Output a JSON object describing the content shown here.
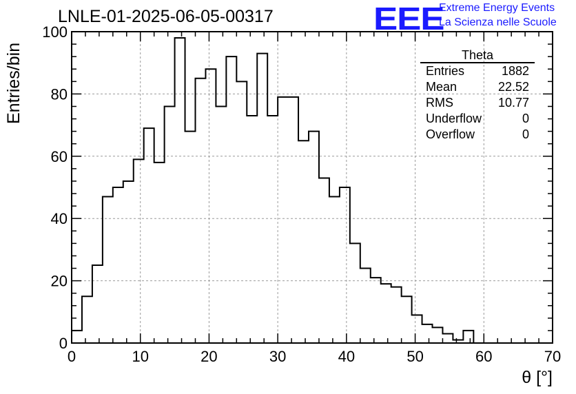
{
  "title": "LNLE-01-2025-06-05-00317",
  "logo": {
    "mark": "EEE",
    "line1": "Extreme Energy Events",
    "line2": "La Scienza nelle Scuole",
    "color": "#1a1aff"
  },
  "stats_box": {
    "title": "Theta",
    "rows": [
      {
        "label": "Entries",
        "value": "1882"
      },
      {
        "label": "Mean",
        "value": "22.52"
      },
      {
        "label": "RMS",
        "value": "10.77"
      },
      {
        "label": "Underflow",
        "value": "0"
      },
      {
        "label": "Overflow",
        "value": "0"
      }
    ]
  },
  "chart_data": {
    "type": "bar",
    "style": "step-histogram",
    "title": "LNLE-01-2025-06-05-00317",
    "xlabel": "θ [°]",
    "ylabel": "Entries/bin",
    "xlim": [
      0,
      70
    ],
    "ylim": [
      0,
      100
    ],
    "x_ticks": [
      0,
      10,
      20,
      30,
      40,
      50,
      60,
      70
    ],
    "y_ticks": [
      0,
      20,
      40,
      60,
      80,
      100
    ],
    "grid": true,
    "bin_width": 1.5,
    "bin_edges_start": 0,
    "values": [
      4,
      15,
      25,
      47,
      50,
      52,
      59,
      69,
      58,
      76,
      98,
      68,
      85,
      88,
      76,
      92,
      84,
      73,
      93,
      73,
      79,
      79,
      65,
      68,
      53,
      47,
      50,
      32,
      24,
      21,
      19,
      18,
      15,
      9,
      6,
      5,
      3,
      1,
      4,
      0,
      0,
      0,
      0,
      0,
      0,
      0
    ],
    "line_color": "#000000"
  }
}
